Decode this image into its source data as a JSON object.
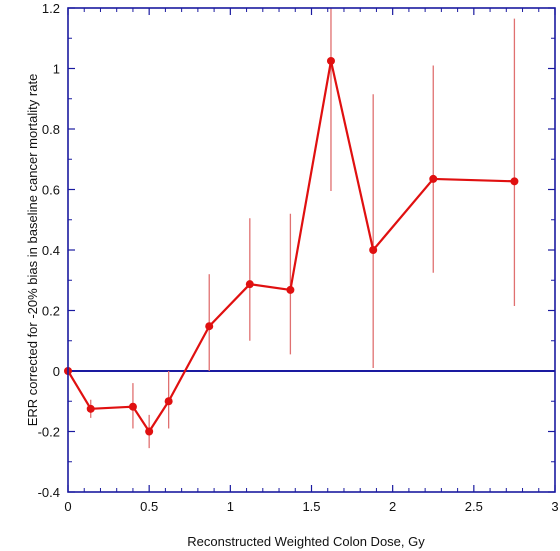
{
  "chart_data": {
    "type": "line",
    "title": "",
    "xlabel": "Reconstructed Weighted Colon Dose, Gy",
    "ylabel": "ERR corrected for -20% bias in baseline cancer mortality rate",
    "xlim": [
      0,
      3
    ],
    "ylim": [
      -0.4,
      1.2
    ],
    "x_ticks": [
      0,
      0.5,
      1,
      1.5,
      2,
      2.5,
      3
    ],
    "x_tick_labels": [
      "0",
      "0.5",
      "1",
      "1.5",
      "2",
      "2.5",
      "3"
    ],
    "y_ticks": [
      -0.4,
      -0.2,
      0,
      0.2,
      0.4,
      0.6,
      0.8,
      1,
      1.2
    ],
    "y_tick_labels": [
      "-0.4",
      "-0.2",
      "0",
      "0.2",
      "0.4",
      "0.6",
      "0.8",
      "1",
      "1.2"
    ],
    "grid": false,
    "reference_line_y": 0,
    "series": [
      {
        "x": [
          0.0,
          0.14,
          0.4,
          0.5,
          0.62,
          0.87,
          1.12,
          1.37,
          1.62,
          1.88,
          2.25,
          2.75
        ],
        "y": [
          0.0,
          -0.125,
          -0.118,
          -0.2,
          -0.1,
          0.148,
          0.287,
          0.268,
          1.025,
          0.4,
          0.635,
          0.627
        ],
        "y_lower": [
          null,
          -0.155,
          -0.19,
          -0.255,
          -0.19,
          0.0,
          0.1,
          0.055,
          0.595,
          0.01,
          0.325,
          0.215
        ],
        "y_upper": [
          null,
          -0.095,
          -0.04,
          -0.145,
          0.0,
          0.32,
          0.505,
          0.52,
          1.2,
          0.915,
          1.01,
          1.165
        ]
      }
    ],
    "colors": {
      "series": "#e01010",
      "error_bar": "#e07070",
      "axes": "#1a1aa0",
      "zero_line": "#1a1aa0"
    }
  }
}
